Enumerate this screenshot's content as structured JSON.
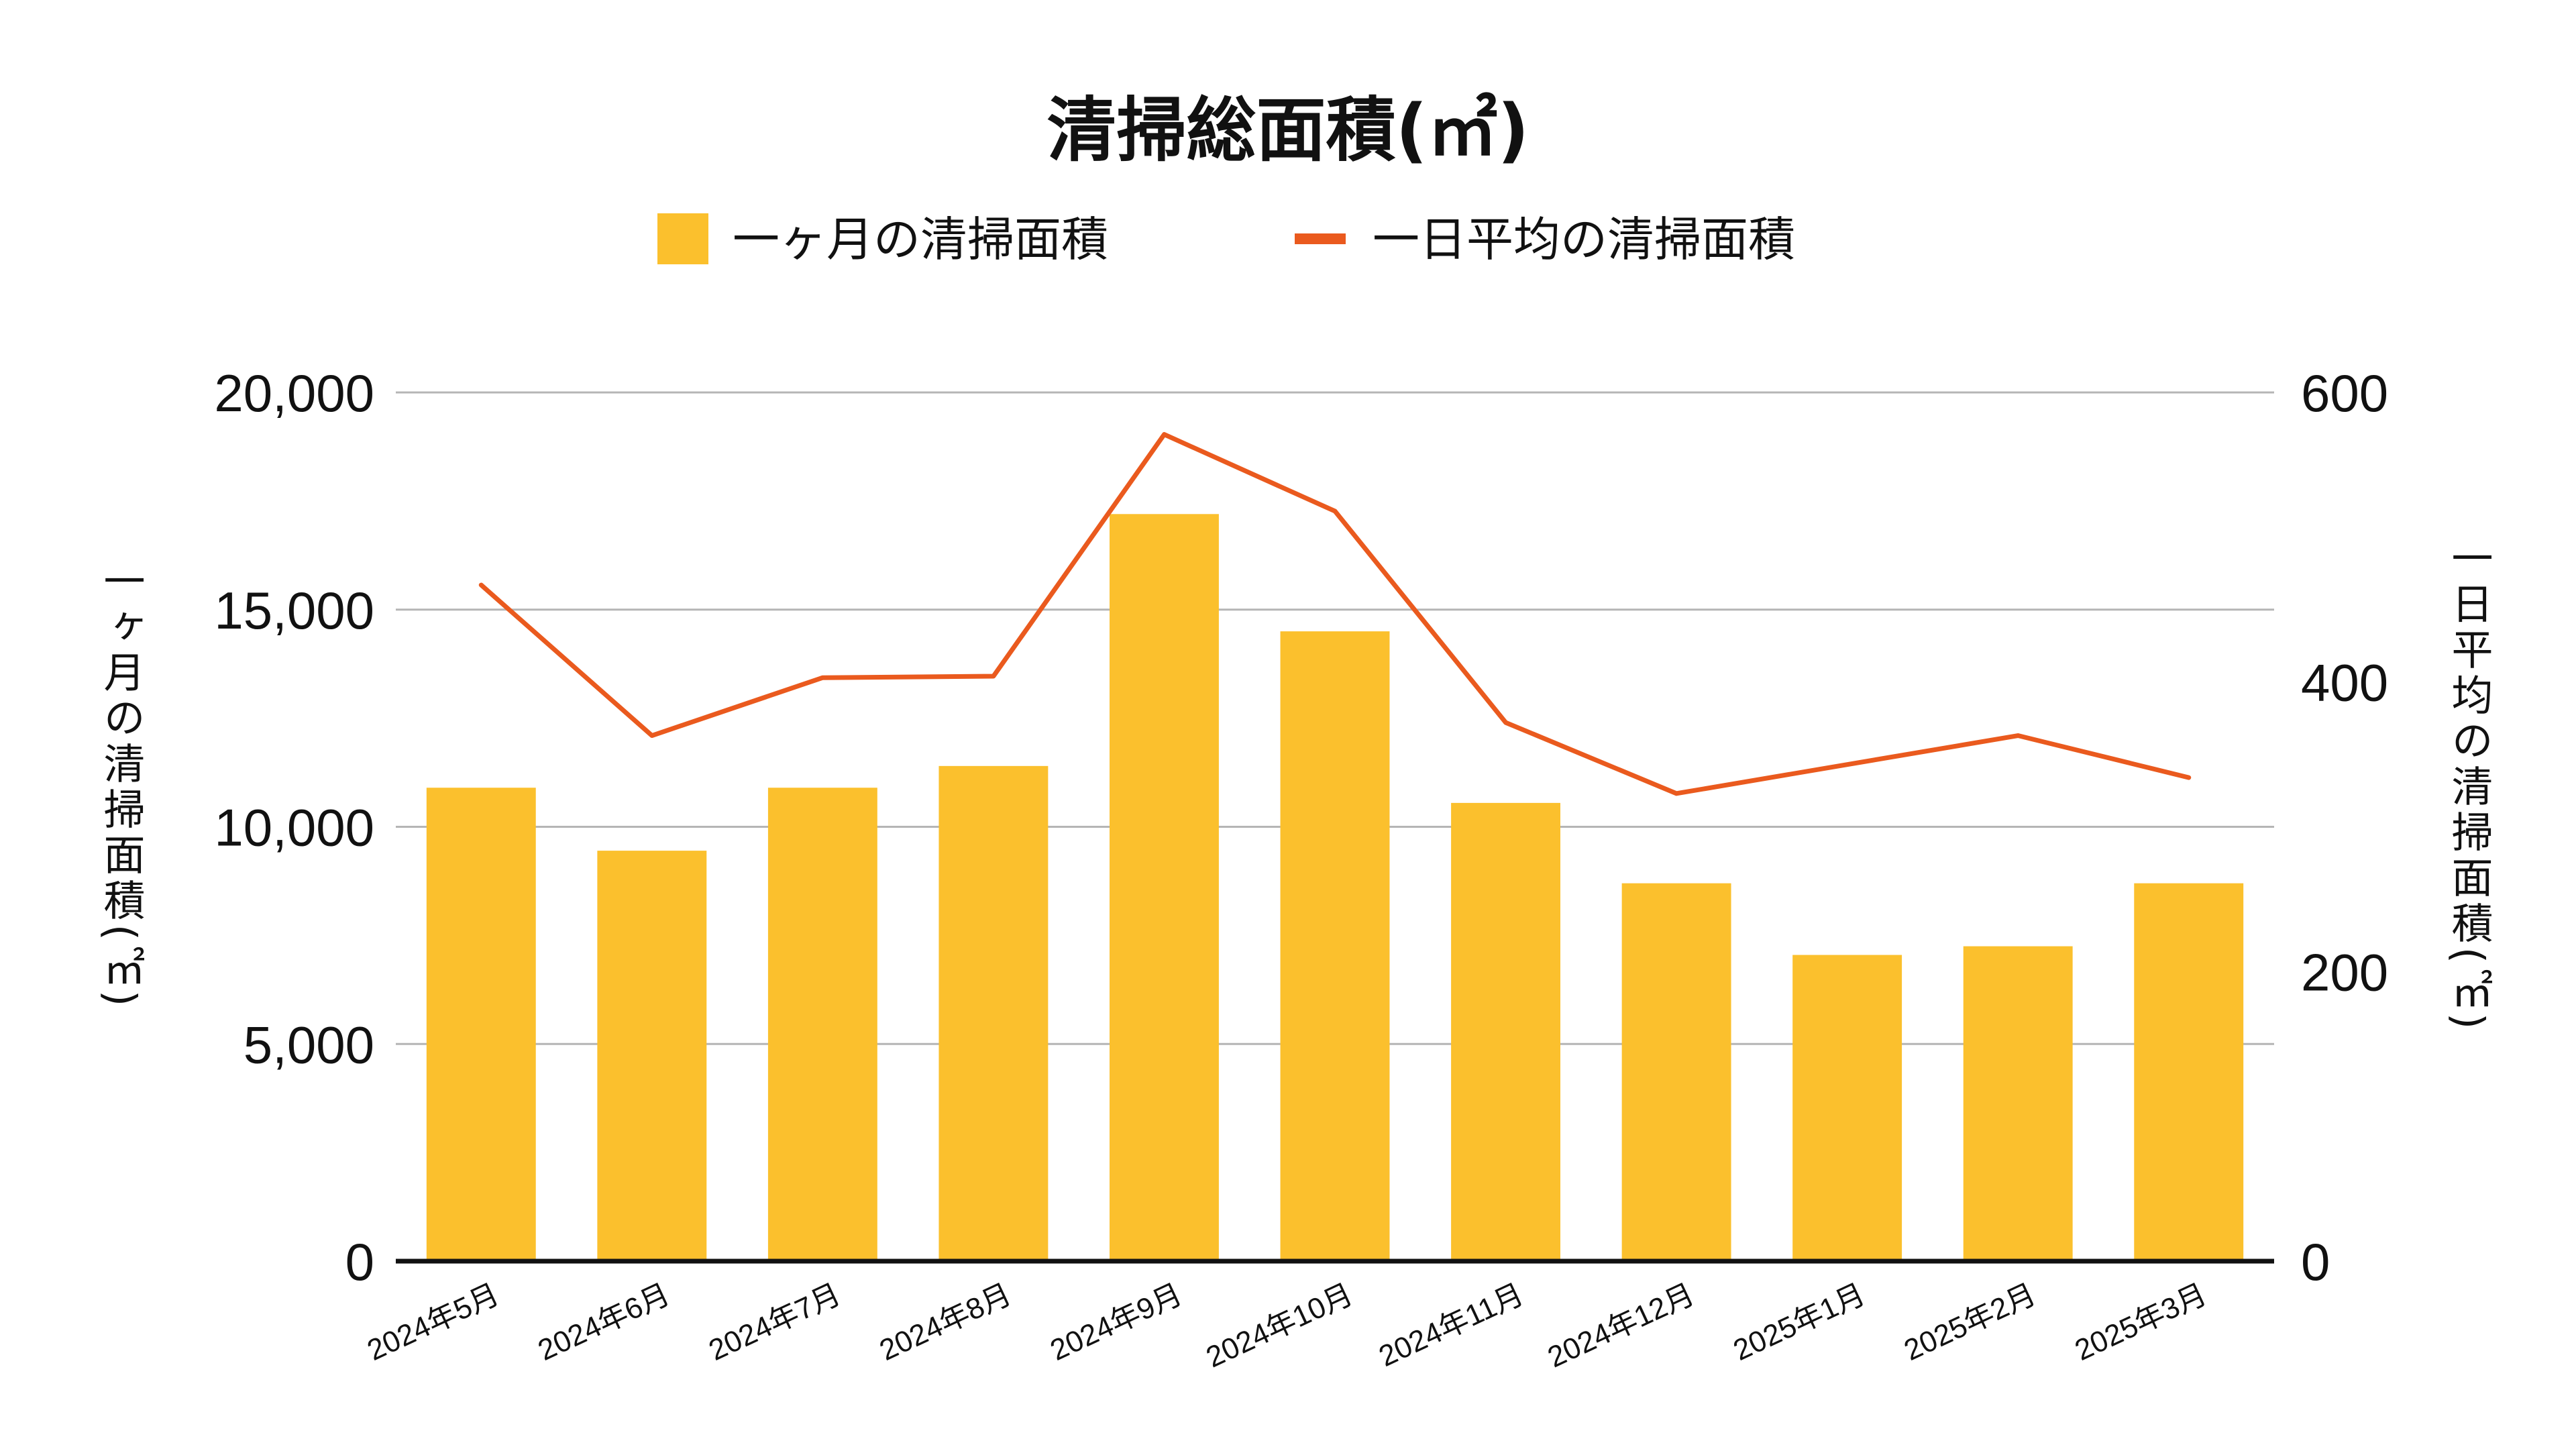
{
  "chart_data": {
    "type": "bar",
    "title": "清掃総面積(㎡)",
    "categories": [
      "2024年5月",
      "2024年6月",
      "2024年7月",
      "2024年8月",
      "2024年9月",
      "2024年10月",
      "2024年11月",
      "2024年12月",
      "2025年1月",
      "2025年2月",
      "2025年3月"
    ],
    "series": [
      {
        "name": "一ヶ月の清掃面積",
        "type": "bar",
        "axis": "left",
        "color": "#FBC02D",
        "values": [
          10900,
          9450,
          10900,
          11400,
          17200,
          14500,
          10550,
          8700,
          7050,
          7250,
          8700
        ]
      },
      {
        "name": "一日平均の清掃面積",
        "type": "line",
        "axis": "right",
        "color": "#EA5A1E",
        "values": [
          467,
          363,
          403,
          404,
          571,
          518,
          372,
          323,
          343,
          363,
          334
        ]
      }
    ],
    "y_left": {
      "label": "一ヶ月の清掃面積(㎡)",
      "ylim": [
        0,
        20000
      ],
      "ticks": [
        0,
        5000,
        10000,
        15000,
        20000
      ],
      "tick_labels": [
        "0",
        "5,000",
        "10,000",
        "15,000",
        "20,000"
      ]
    },
    "y_right": {
      "label": "一日平均の清掃面積(㎡)",
      "ylim": [
        0,
        600
      ],
      "ticks": [
        0,
        200,
        400,
        600
      ],
      "tick_labels": [
        "0",
        "200",
        "400",
        "600"
      ]
    },
    "grid": true,
    "legend_position": "top-center"
  }
}
